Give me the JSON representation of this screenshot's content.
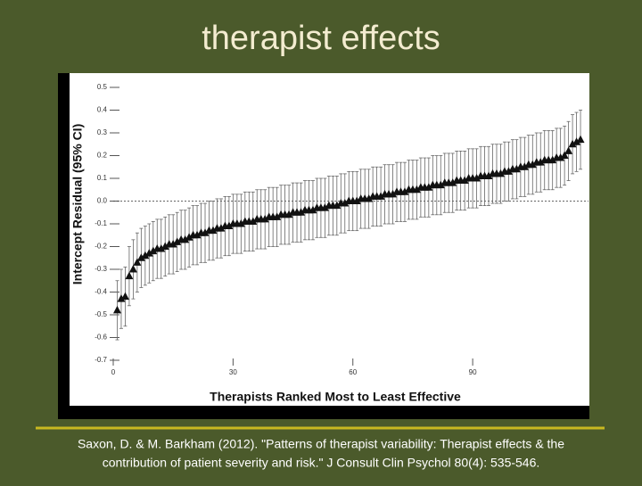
{
  "slide_title": "therapist effects",
  "citation": {
    "line1": "Saxon, D. & M. Barkham (2012). \"Patterns of therapist variability: Therapist effects & the",
    "line2": "contribution of patient severity and risk.\" J Consult Clin Psychol 80(4): 535-546."
  },
  "chart_data": {
    "type": "errorbar",
    "x_label": "Therapists Ranked Most to Least Effective",
    "y_label": "Intercept Residual (95% CI)",
    "x": [
      1,
      2,
      3,
      4,
      5,
      6,
      7,
      8,
      9,
      10,
      11,
      12,
      13,
      14,
      15,
      16,
      17,
      18,
      19,
      20,
      21,
      22,
      23,
      24,
      25,
      26,
      27,
      28,
      29,
      30,
      31,
      32,
      33,
      34,
      35,
      36,
      37,
      38,
      39,
      40,
      41,
      42,
      43,
      44,
      45,
      46,
      47,
      48,
      49,
      50,
      51,
      52,
      53,
      54,
      55,
      56,
      57,
      58,
      59,
      60,
      61,
      62,
      63,
      64,
      65,
      66,
      67,
      68,
      69,
      70,
      71,
      72,
      73,
      74,
      75,
      76,
      77,
      78,
      79,
      80,
      81,
      82,
      83,
      84,
      85,
      86,
      87,
      88,
      89,
      90,
      91,
      92,
      93,
      94,
      95,
      96,
      97,
      98,
      99,
      100,
      101,
      102,
      103,
      104,
      105,
      106,
      107,
      108,
      109,
      110,
      111,
      112,
      113,
      114,
      115,
      116,
      117
    ],
    "values": [
      -0.48,
      -0.43,
      -0.42,
      -0.33,
      -0.3,
      -0.27,
      -0.25,
      -0.24,
      -0.23,
      -0.22,
      -0.21,
      -0.21,
      -0.2,
      -0.19,
      -0.19,
      -0.18,
      -0.17,
      -0.17,
      -0.16,
      -0.15,
      -0.15,
      -0.14,
      -0.14,
      -0.13,
      -0.13,
      -0.12,
      -0.12,
      -0.11,
      -0.11,
      -0.1,
      -0.1,
      -0.1,
      -0.09,
      -0.09,
      -0.09,
      -0.08,
      -0.08,
      -0.08,
      -0.07,
      -0.07,
      -0.07,
      -0.06,
      -0.06,
      -0.06,
      -0.05,
      -0.05,
      -0.05,
      -0.04,
      -0.04,
      -0.04,
      -0.03,
      -0.03,
      -0.03,
      -0.02,
      -0.02,
      -0.02,
      -0.01,
      -0.01,
      0.0,
      0.0,
      0.0,
      0.01,
      0.01,
      0.01,
      0.02,
      0.02,
      0.02,
      0.03,
      0.03,
      0.03,
      0.04,
      0.04,
      0.04,
      0.05,
      0.05,
      0.05,
      0.06,
      0.06,
      0.06,
      0.07,
      0.07,
      0.07,
      0.08,
      0.08,
      0.08,
      0.09,
      0.09,
      0.09,
      0.1,
      0.1,
      0.1,
      0.11,
      0.11,
      0.11,
      0.12,
      0.12,
      0.12,
      0.13,
      0.13,
      0.14,
      0.14,
      0.15,
      0.15,
      0.16,
      0.16,
      0.17,
      0.17,
      0.18,
      0.18,
      0.18,
      0.19,
      0.19,
      0.2,
      0.22,
      0.25,
      0.26,
      0.27
    ],
    "error": 0.13,
    "xlim": [
      0,
      119
    ],
    "xticks": [
      0,
      30,
      60,
      90
    ],
    "ylim": [
      -0.7,
      0.5
    ],
    "yticks": [
      -0.7,
      -0.6,
      -0.5,
      -0.4,
      -0.3,
      -0.2,
      -0.1,
      {
        "value": 0,
        "label": "0.0"
      },
      0.1,
      0.2,
      0.3,
      0.4,
      0.5
    ],
    "reference_line": 0,
    "color": "#111111"
  }
}
